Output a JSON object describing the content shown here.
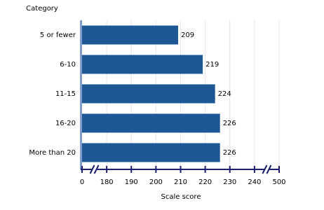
{
  "chart_data": {
    "type": "hbar",
    "y_axis_title": "Category",
    "x_axis_title": "Scale score",
    "categories": [
      "5 or fewer",
      "6-10",
      "11-15",
      "16-20",
      "More than 20"
    ],
    "values": [
      209,
      219,
      224,
      226,
      226
    ],
    "color": "#1d5796",
    "xlim": [
      0,
      500
    ],
    "xticks": [
      0,
      180,
      190,
      200,
      210,
      220,
      230,
      240,
      500
    ],
    "axis_break": true,
    "grid": true
  }
}
